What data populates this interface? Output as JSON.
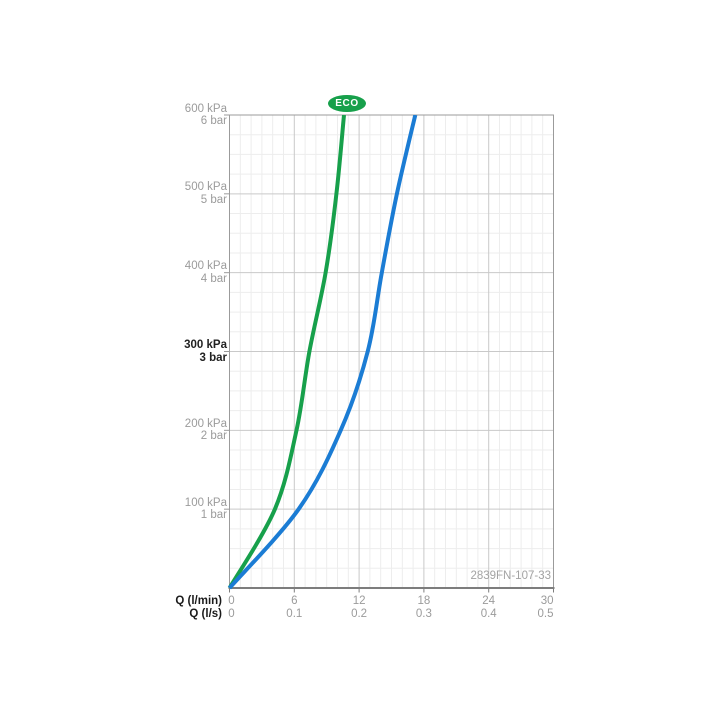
{
  "badge": {
    "label": "ECO",
    "fill": "#17a04b",
    "text_color": "#ffffff"
  },
  "watermark": {
    "text": "2839FN-107-33"
  },
  "chart_data": {
    "type": "line",
    "title": "",
    "legend": "none",
    "grid": true,
    "x_axis": {
      "range_lmin": [
        0,
        30
      ],
      "major_step_lmin": 6,
      "minor_step_lmin": 1,
      "rows": [
        {
          "label": "Q (l/min)",
          "ticks": [
            {
              "label": "0",
              "lmin": 0
            },
            {
              "label": "6",
              "lmin": 6
            },
            {
              "label": "12",
              "lmin": 12
            },
            {
              "label": "18",
              "lmin": 18
            },
            {
              "label": "24",
              "lmin": 24
            },
            {
              "label": "30",
              "lmin": 30
            }
          ]
        },
        {
          "label": "Q (l/s)",
          "ticks": [
            {
              "label": "0",
              "lmin": 0
            },
            {
              "label": "0.1",
              "lmin": 6
            },
            {
              "label": "0.2",
              "lmin": 12
            },
            {
              "label": "0.3",
              "lmin": 18
            },
            {
              "label": "0.4",
              "lmin": 24
            },
            {
              "label": "0.5",
              "lmin": 30
            }
          ]
        }
      ]
    },
    "y_axis": {
      "range_kpa": [
        0,
        600
      ],
      "major_step_kpa": 100,
      "minor_step_kpa": 25,
      "ticks": [
        {
          "kpa_label": "600 kPa",
          "bar_label": "6 bar",
          "kpa": 600,
          "bold": false
        },
        {
          "kpa_label": "500 kPa",
          "bar_label": "5 bar",
          "kpa": 500,
          "bold": false
        },
        {
          "kpa_label": "400 kPa",
          "bar_label": "4 bar",
          "kpa": 400,
          "bold": false
        },
        {
          "kpa_label": "300 kPa",
          "bar_label": "3 bar",
          "kpa": 300,
          "bold": true
        },
        {
          "kpa_label": "200 kPa",
          "bar_label": "2 bar",
          "kpa": 200,
          "bold": false
        },
        {
          "kpa_label": "100 kPa",
          "bar_label": "1 bar",
          "kpa": 100,
          "bold": false
        }
      ]
    },
    "series": [
      {
        "id": "eco",
        "name": "ECO",
        "color": "#17a04b",
        "points_lmin_kpa": [
          [
            0,
            0
          ],
          [
            4.2,
            100
          ],
          [
            6.2,
            200
          ],
          [
            7.4,
            300
          ],
          [
            8.9,
            400
          ],
          [
            9.9,
            500
          ],
          [
            10.6,
            600
          ]
        ]
      },
      {
        "id": "blue",
        "name": "",
        "color": "#1b7cd4",
        "points_lmin_kpa": [
          [
            0,
            0
          ],
          [
            6.4,
            100
          ],
          [
            10.3,
            200
          ],
          [
            12.8,
            300
          ],
          [
            14.1,
            400
          ],
          [
            15.5,
            500
          ],
          [
            17.2,
            600
          ]
        ]
      }
    ],
    "colors": {
      "grid_minor": "#ededed",
      "grid_major": "#c9c9c9",
      "plot_border": "#9b9b9b",
      "axis_line": "#7d7d7d",
      "tick_text": "#9b9b9b",
      "bold_text": "#222222",
      "watermark_text": "#a3a3a3"
    }
  }
}
